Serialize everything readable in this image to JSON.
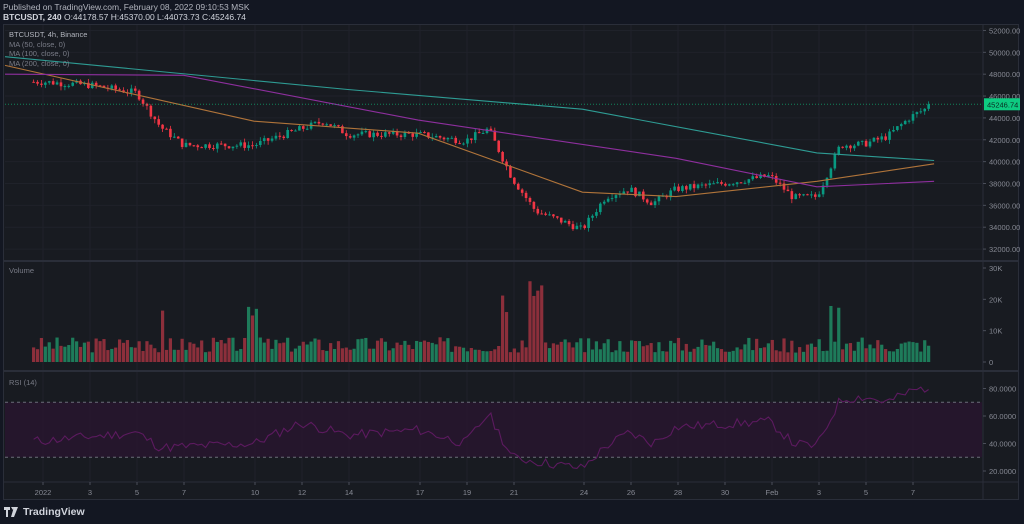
{
  "header": {
    "published": "Published on TradingView.com, February 08, 2022 09:10:53 MSK",
    "symbol_tf": "BTCUSDT, 240",
    "ohlc": "O:44178.57 H:45370.00 L:44073.73 C:45246.74"
  },
  "legend": {
    "symbol": "BTCUSDT, 4h, Binance",
    "ma50": "MA (50, close, 0)",
    "ma100": "MA (100, close, 0)",
    "ma200": "MA (200, close, 0)"
  },
  "panes": {
    "volume_label": "Volume",
    "rsi_label": "RSI (14)"
  },
  "price_badge": "45246.74",
  "footer": {
    "brand": "TradingView"
  },
  "colors": {
    "up": "#26a69a",
    "up_candle": "#089981",
    "down": "#f23645",
    "vol_up": "#1e7b5a",
    "vol_down": "#8c2f3b",
    "ma50": "#2e9c94",
    "ma100": "#b0743a",
    "ma200": "#8e2f9e",
    "rsi": "#5c1a5f",
    "badge": "#0ecb81"
  },
  "chart_data": [
    {
      "type": "candlestick",
      "title": "BTCUSDT, 4h, Binance",
      "ylim": [
        31000,
        52500
      ],
      "yticks": [
        32000,
        34000,
        36000,
        38000,
        40000,
        42000,
        44000,
        46000,
        48000,
        50000,
        52000
      ],
      "xticks": [
        "2022",
        "3",
        "5",
        "7",
        "10",
        "12",
        "14",
        "17",
        "19",
        "21",
        "24",
        "26",
        "28",
        "30",
        "Feb",
        "3",
        "5",
        "7"
      ],
      "last_price": 45246.74,
      "approx_close_path": [
        {
          "x": "Jan 1",
          "close": 47300
        },
        {
          "x": "Jan 3",
          "close": 47000
        },
        {
          "x": "Jan 5",
          "close": 46300
        },
        {
          "x": "Jan 6",
          "close": 43200
        },
        {
          "x": "Jan 7",
          "close": 41500
        },
        {
          "x": "Jan 10",
          "close": 41500
        },
        {
          "x": "Jan 12",
          "close": 43000
        },
        {
          "x": "Jan 13",
          "close": 43700
        },
        {
          "x": "Jan 14",
          "close": 42500
        },
        {
          "x": "Jan 17",
          "close": 42500
        },
        {
          "x": "Jan 19",
          "close": 41900
        },
        {
          "x": "Jan 20",
          "close": 43000
        },
        {
          "x": "Jan 21",
          "close": 38500
        },
        {
          "x": "Jan 22",
          "close": 35500
        },
        {
          "x": "Jan 24",
          "close": 33800
        },
        {
          "x": "Jan 25",
          "close": 36800
        },
        {
          "x": "Jan 26",
          "close": 37500
        },
        {
          "x": "Jan 27",
          "close": 36200
        },
        {
          "x": "Jan 28",
          "close": 37500
        },
        {
          "x": "Jan 30",
          "close": 38000
        },
        {
          "x": "Feb 1",
          "close": 38700
        },
        {
          "x": "Feb 2",
          "close": 36700
        },
        {
          "x": "Feb 3",
          "close": 36800
        },
        {
          "x": "Feb 4",
          "close": 41500
        },
        {
          "x": "Feb 5",
          "close": 41600
        },
        {
          "x": "Feb 6",
          "close": 42300
        },
        {
          "x": "Feb 7",
          "close": 44100
        },
        {
          "x": "Feb 8",
          "close": 45246.74
        }
      ],
      "series": [
        {
          "name": "MA (50, close, 0)",
          "color": "#2e9c94",
          "approx": [
            {
              "x": "Jan 1",
              "y": 49600
            },
            {
              "x": "Jan 14",
              "y": 46600
            },
            {
              "x": "Jan 24",
              "y": 44800
            },
            {
              "x": "Feb 3",
              "y": 40800
            },
            {
              "x": "Feb 8",
              "y": 40100
            }
          ]
        },
        {
          "name": "MA (100, close, 0)",
          "color": "#b0743a",
          "approx": [
            {
              "x": "Jan 1",
              "y": 48800
            },
            {
              "x": "Jan 10",
              "y": 43700
            },
            {
              "x": "Jan 17",
              "y": 42600
            },
            {
              "x": "Jan 24",
              "y": 37200
            },
            {
              "x": "Jan 28",
              "y": 36800
            },
            {
              "x": "Feb 3",
              "y": 38200
            },
            {
              "x": "Feb 8",
              "y": 39800
            }
          ]
        },
        {
          "name": "MA (200, close, 0)",
          "color": "#8e2f9e",
          "approx": [
            {
              "x": "Jan 1",
              "y": 48000
            },
            {
              "x": "Jan 7",
              "y": 47900
            },
            {
              "x": "Jan 17",
              "y": 43800
            },
            {
              "x": "Jan 28",
              "y": 40300
            },
            {
              "x": "Feb 3",
              "y": 37700
            },
            {
              "x": "Feb 8",
              "y": 38200
            }
          ]
        }
      ]
    },
    {
      "type": "bar",
      "title": "Volume",
      "ylim": [
        0,
        30000
      ],
      "yticks": [
        "0",
        "10K",
        "20K",
        "30K"
      ],
      "peaks": [
        {
          "x": "Jan 6",
          "value": 21000
        },
        {
          "x": "Jan 10",
          "value": 22000
        },
        {
          "x": "Jan 21",
          "value": 25000
        },
        {
          "x": "Jan 22",
          "value": 27500
        },
        {
          "x": "Jan 24",
          "value": 22000
        },
        {
          "x": "Feb 4",
          "value": 20000
        }
      ],
      "typical_range": [
        3000,
        8000
      ]
    },
    {
      "type": "line",
      "title": "RSI (14)",
      "ylim": [
        12,
        92
      ],
      "yticks": [
        "20.0000",
        "40.0000",
        "60.0000",
        "80.0000"
      ],
      "bands": [
        30,
        70
      ],
      "approx_values": [
        {
          "x": "Jan 1",
          "y": 42
        },
        {
          "x": "Jan 5",
          "y": 48
        },
        {
          "x": "Jan 6",
          "y": 37
        },
        {
          "x": "Jan 10",
          "y": 40
        },
        {
          "x": "Jan 12",
          "y": 55
        },
        {
          "x": "Jan 14",
          "y": 46
        },
        {
          "x": "Jan 17",
          "y": 50
        },
        {
          "x": "Jan 19",
          "y": 40
        },
        {
          "x": "Jan 20",
          "y": 62
        },
        {
          "x": "Jan 21",
          "y": 30
        },
        {
          "x": "Jan 22",
          "y": 27
        },
        {
          "x": "Jan 24",
          "y": 22
        },
        {
          "x": "Jan 25",
          "y": 38
        },
        {
          "x": "Jan 26",
          "y": 48
        },
        {
          "x": "Jan 27",
          "y": 40
        },
        {
          "x": "Jan 28",
          "y": 52
        },
        {
          "x": "Jan 30",
          "y": 54
        },
        {
          "x": "Feb 1",
          "y": 56
        },
        {
          "x": "Feb 2",
          "y": 40
        },
        {
          "x": "Feb 3",
          "y": 38
        },
        {
          "x": "Feb 4",
          "y": 72
        },
        {
          "x": "Feb 5",
          "y": 74
        },
        {
          "x": "Feb 6",
          "y": 70
        },
        {
          "x": "Feb 7",
          "y": 78
        },
        {
          "x": "Feb 8",
          "y": 82
        }
      ]
    }
  ]
}
